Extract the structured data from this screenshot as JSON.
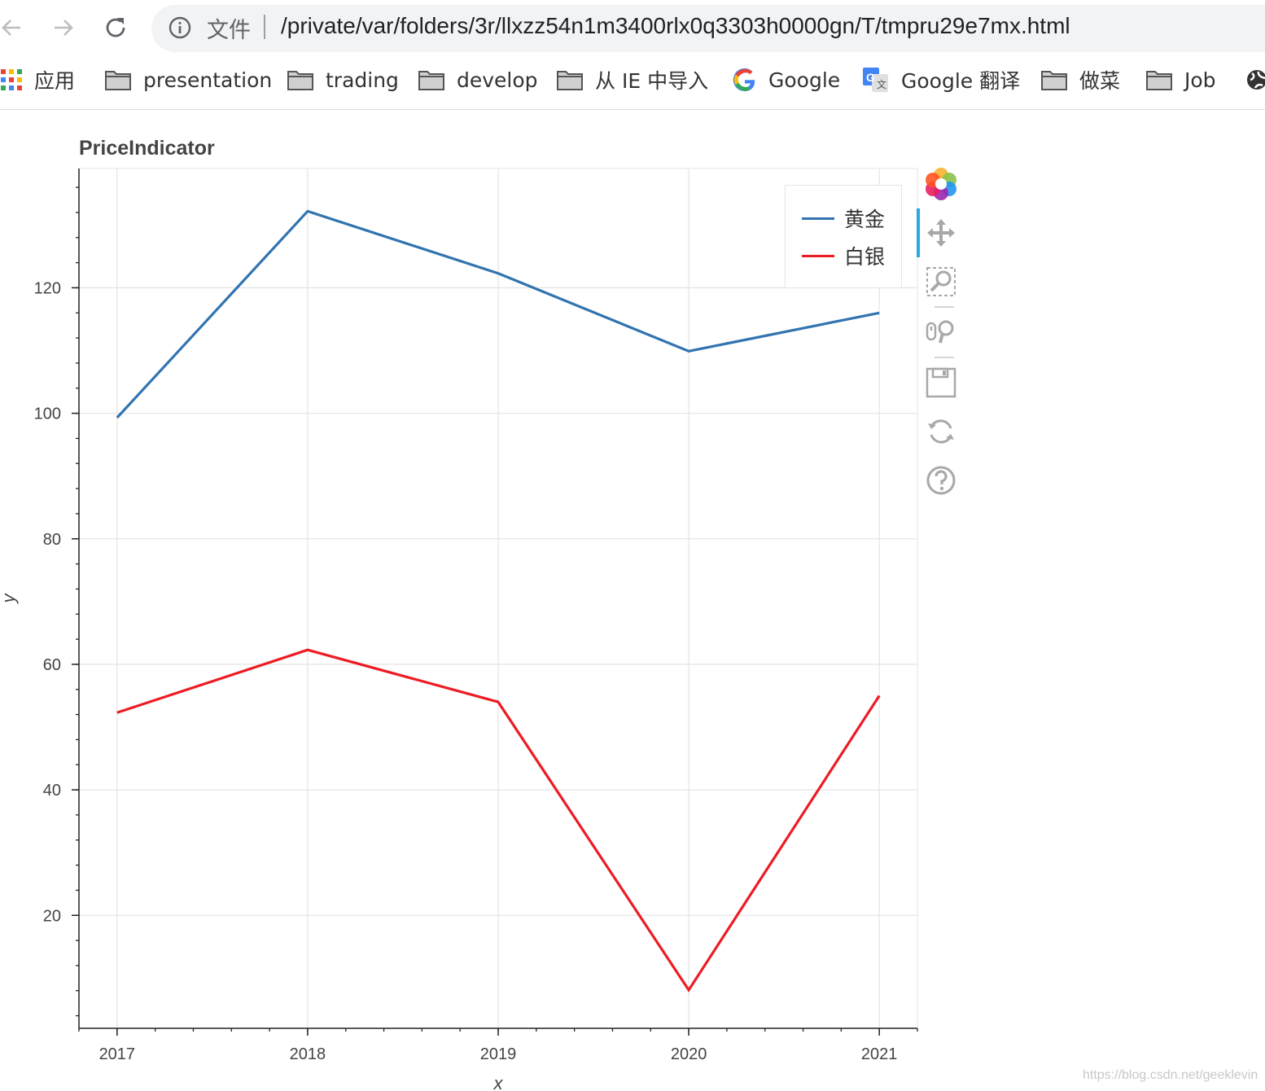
{
  "browser": {
    "url_scheme": "文件",
    "url": "/private/var/folders/3r/llxzz54n1m3400rlx0q3303h0000gn/T/tmpru29e7mx.html",
    "bookmarks": [
      {
        "label": "应用",
        "icon": "apps-grid-icon"
      },
      {
        "label": "presentation",
        "icon": "folder-icon"
      },
      {
        "label": "trading",
        "icon": "folder-icon"
      },
      {
        "label": "develop",
        "icon": "folder-icon"
      },
      {
        "label": "从 IE 中导入",
        "icon": "folder-icon"
      },
      {
        "label": "Google",
        "icon": "google-icon"
      },
      {
        "label": "Google 翻译",
        "icon": "google-translate-icon"
      },
      {
        "label": "做菜",
        "icon": "folder-icon"
      },
      {
        "label": "Job",
        "icon": "folder-icon"
      }
    ]
  },
  "chart_data": {
    "type": "line",
    "title": "PriceIndicator",
    "xlabel": "x",
    "ylabel": "y",
    "x": [
      2017,
      2018,
      2019,
      2020,
      2021
    ],
    "xlim": [
      2016.8,
      2021.2
    ],
    "ylim": [
      2,
      139
    ],
    "xticks": [
      2017,
      2018,
      2019,
      2020,
      2021
    ],
    "yticks": [
      20,
      40,
      60,
      80,
      100,
      120
    ],
    "grid": true,
    "legend_position": "top-right",
    "series": [
      {
        "name": "黄金",
        "color": "#3174b0",
        "values": [
          99.3,
          132.2,
          122.3,
          109.9,
          116.0
        ]
      },
      {
        "name": "白银",
        "color": "#ec1c24",
        "values": [
          52.3,
          62.3,
          54.0,
          8.1,
          55.0
        ]
      }
    ]
  },
  "toolbar": {
    "tools": [
      "bokeh-logo-icon",
      "pan-icon",
      "box-zoom-icon",
      "wheel-zoom-icon",
      "save-icon",
      "reset-icon",
      "help-icon"
    ]
  },
  "watermark": "https://blog.csdn.net/geeklevin"
}
